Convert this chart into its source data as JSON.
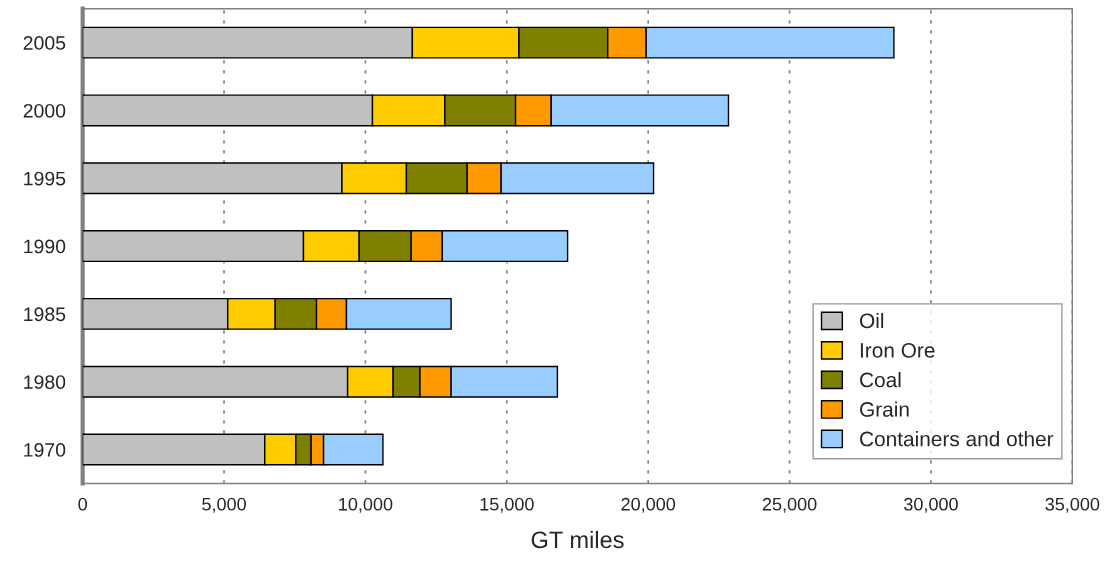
{
  "chart_data": {
    "type": "bar",
    "orientation": "horizontal",
    "stacked": true,
    "xlabel": "GT miles",
    "categories": [
      "2005",
      "2000",
      "1995",
      "1990",
      "1985",
      "1980",
      "1970"
    ],
    "series": [
      {
        "name": "Oil",
        "color": "#c0c0c0",
        "values": [
          11660,
          10250,
          9170,
          7810,
          5130,
          9370,
          6440
        ]
      },
      {
        "name": "Iron Ore",
        "color": "#ffcc00",
        "values": [
          3770,
          2560,
          2280,
          1970,
          1680,
          1610,
          1100
        ]
      },
      {
        "name": "Coal",
        "color": "#808000",
        "values": [
          3140,
          2500,
          2150,
          1840,
          1460,
          950,
          540
        ]
      },
      {
        "name": "Grain",
        "color": "#ff9900",
        "values": [
          1360,
          1260,
          1200,
          1100,
          1060,
          1100,
          440
        ]
      },
      {
        "name": "Containers and other",
        "color": "#99ccff",
        "values": [
          8760,
          6270,
          5390,
          4430,
          3700,
          3760,
          2100
        ]
      }
    ],
    "xlim": [
      0,
      35000
    ],
    "xticks": [
      0,
      {
        "value": 5000,
        "label": "5,000"
      },
      {
        "value": 10000,
        "label": "10,000"
      },
      {
        "value": 15000,
        "label": "15,000"
      },
      {
        "value": 20000,
        "label": "20,000"
      },
      {
        "value": 25000,
        "label": "25,000"
      },
      {
        "value": 30000,
        "label": "30,000"
      },
      {
        "value": 35000,
        "label": "35,000"
      }
    ],
    "grid": "x",
    "legend": "bottom right"
  }
}
